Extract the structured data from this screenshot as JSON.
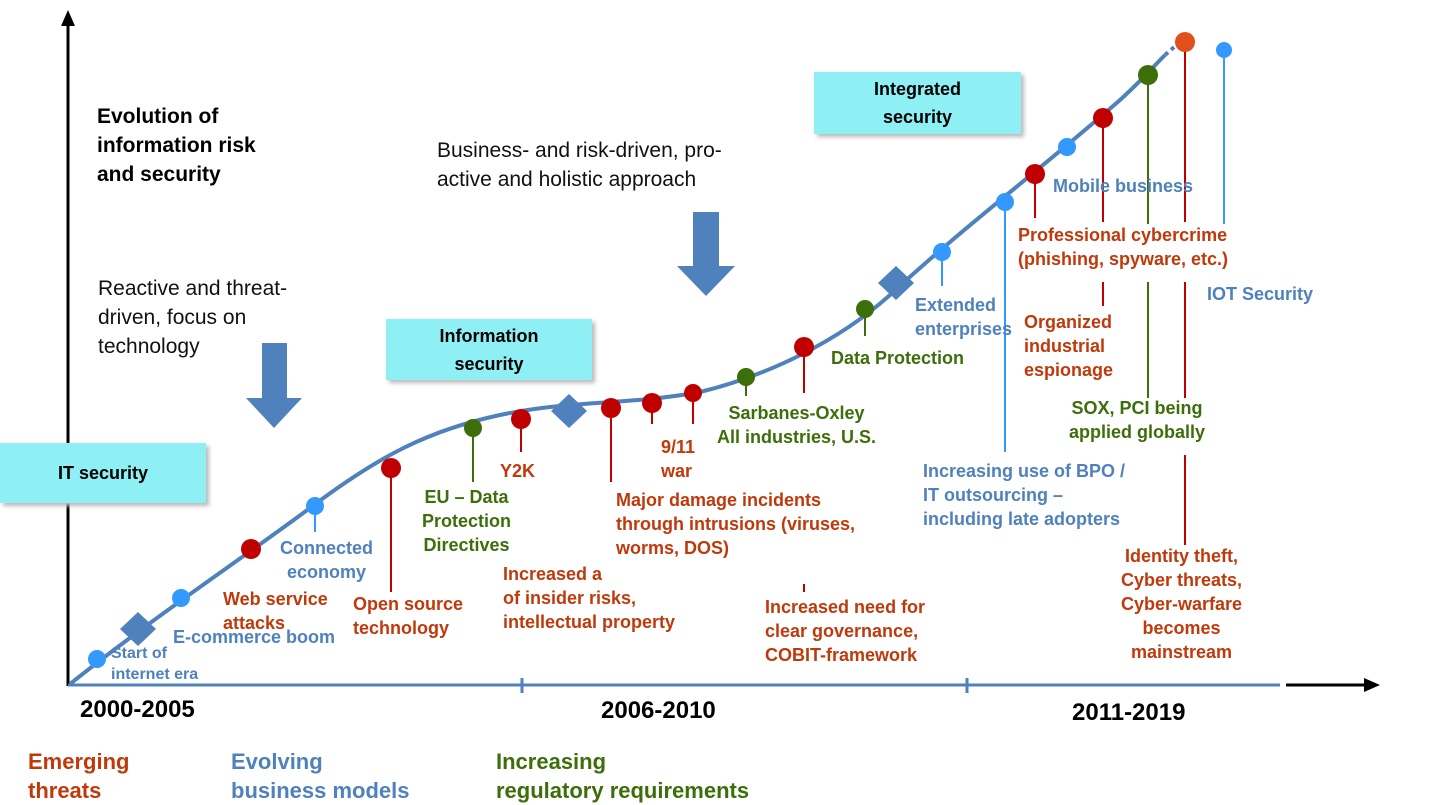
{
  "title": "Evolution of\ninformation risk\nand security",
  "approach_reactive": "Reactive and threat-\ndriven, focus on\ntechnology",
  "approach_business": "Business- and risk-driven, pro-\nactive and holistic approach",
  "phases": {
    "it_security": "IT security",
    "information_security": "Information\nsecurity",
    "integrated_security": "Integrated\nsecurity"
  },
  "periods": [
    "2000-2005",
    "2006-2010",
    "2011-2019"
  ],
  "legend": {
    "emerging_threats": "Emerging\nthreats",
    "evolving_business_models": "Evolving\nbusiness models",
    "increasing_regulatory": "Increasing\nregulatory requirements"
  },
  "colors": {
    "threat": "#C00000",
    "business": "#3399FF",
    "regulatory": "#3C6E0A",
    "curve": "#4F81BD",
    "phase_box": "#8EEFF4"
  },
  "events": {
    "start_internet": "Start of\ninternet era",
    "ecommerce": "E-commerce boom",
    "web_service_attacks": "Web service\nattacks",
    "connected_economy": "Connected\neconomy",
    "open_source": "Open source\ntechnology",
    "eu_data": "EU – Data\nProtection\nDirectives",
    "y2k": "Y2K",
    "insider_risks": "Increased a\nof insider risks,\nintellectual property",
    "major_damage": "Major damage incidents\nthrough intrusions (viruses,\nworms, DOS)",
    "nine_eleven": "9/11\nwar",
    "sarbanes": "Sarbanes-Oxley\nAll industries, U.S.",
    "governance": "Increased need for\nclear governance,\nCOBIT-framework",
    "data_protection": "Data Protection",
    "extended_enterprises": "Extended\nenterprises",
    "bpo": "Increasing use of BPO /\nIT outsourcing –\nincluding late adopters",
    "mobile_business": "Mobile business",
    "professional_cybercrime": "Professional cybercrime\n(phishing, spyware, etc.)",
    "organized_espionage": "Organized\nindustrial\nespionage",
    "sox_pci": "SOX, PCI being\napplied globally",
    "identity_theft": "Identity theft,\nCyber threats,\nCyber-warfare\nbecomes\nmainstream",
    "iot_security": "IOT Security"
  }
}
